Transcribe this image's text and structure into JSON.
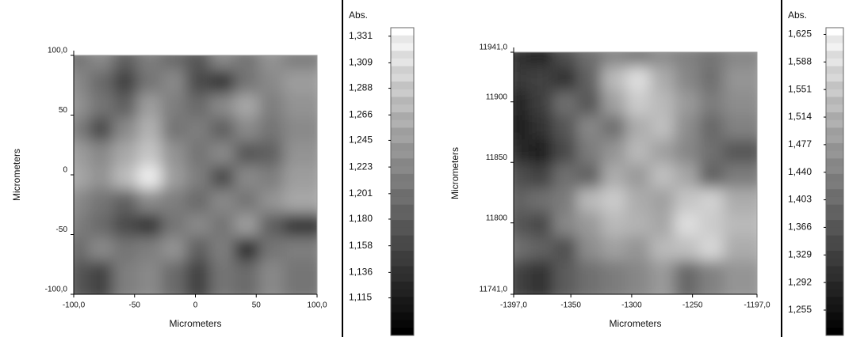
{
  "chart_data": [
    {
      "type": "heatmap",
      "xlabel": "Micrometers",
      "ylabel": "Micrometers",
      "xlim": [
        -100,
        100
      ],
      "ylim": [
        -100,
        100
      ],
      "xticks": [
        {
          "value": -100,
          "label": "-100,0"
        },
        -50,
        0,
        50,
        {
          "value": 100,
          "label": "100,0"
        }
      ],
      "yticks": [
        {
          "value": -100,
          "label": "-100,0"
        },
        -50,
        0,
        50,
        {
          "value": 100,
          "label": "100,0"
        }
      ],
      "x": [
        -90,
        -70,
        -50,
        -30,
        -10,
        10,
        30,
        50,
        70,
        90
      ],
      "y": [
        90,
        70,
        50,
        30,
        10,
        -10,
        -30,
        -50,
        -70,
        -90
      ],
      "z": [
        [
          1.2,
          1.22,
          1.18,
          1.21,
          1.19,
          1.17,
          1.22,
          1.2,
          1.23,
          1.21
        ],
        [
          1.22,
          1.19,
          1.15,
          1.2,
          1.22,
          1.16,
          1.14,
          1.2,
          1.22,
          1.24
        ],
        [
          1.23,
          1.2,
          1.18,
          1.24,
          1.21,
          1.19,
          1.22,
          1.25,
          1.21,
          1.23
        ],
        [
          1.21,
          1.16,
          1.22,
          1.26,
          1.2,
          1.21,
          1.18,
          1.22,
          1.2,
          1.22
        ],
        [
          1.24,
          1.22,
          1.25,
          1.28,
          1.23,
          1.2,
          1.22,
          1.17,
          1.18,
          1.23
        ],
        [
          1.25,
          1.23,
          1.27,
          1.32,
          1.24,
          1.21,
          1.16,
          1.22,
          1.21,
          1.24
        ],
        [
          1.22,
          1.2,
          1.18,
          1.22,
          1.21,
          1.19,
          1.22,
          1.2,
          1.23,
          1.25
        ],
        [
          1.21,
          1.19,
          1.16,
          1.14,
          1.2,
          1.22,
          1.2,
          1.24,
          1.18,
          1.14
        ],
        [
          1.19,
          1.22,
          1.2,
          1.21,
          1.23,
          1.18,
          1.21,
          1.13,
          1.2,
          1.21
        ],
        [
          1.17,
          1.15,
          1.21,
          1.22,
          1.19,
          1.15,
          1.2,
          1.19,
          1.22,
          1.2
        ]
      ],
      "colorbar": {
        "label": "Abs.",
        "clim": [
          1.084,
          1.338
        ],
        "ticks": [
          {
            "value": 1.331,
            "label": "1,331"
          },
          {
            "value": 1.309,
            "label": "1,309"
          },
          {
            "value": 1.288,
            "label": "1,288"
          },
          {
            "value": 1.266,
            "label": "1,266"
          },
          {
            "value": 1.245,
            "label": "1,245"
          },
          {
            "value": 1.223,
            "label": "1,223"
          },
          {
            "value": 1.201,
            "label": "1,201"
          },
          {
            "value": 1.18,
            "label": "1,180"
          },
          {
            "value": 1.158,
            "label": "1,158"
          },
          {
            "value": 1.136,
            "label": "1,136"
          },
          {
            "value": 1.115,
            "label": "1,115"
          }
        ]
      }
    },
    {
      "type": "heatmap",
      "xlabel": "Micrometers",
      "ylabel": "Micrometers",
      "xlim": [
        -1397,
        -1197
      ],
      "ylim": [
        11741,
        11941
      ],
      "xticks": [
        {
          "value": -1397,
          "label": "-1397,0"
        },
        -1350,
        -1300,
        -1250,
        {
          "value": -1197,
          "label": "-1197,0"
        }
      ],
      "yticks": [
        {
          "value": 11741,
          "label": "11741,0"
        },
        11800,
        11850,
        11900,
        {
          "value": 11941,
          "label": "11941,0"
        }
      ],
      "x": [
        -1387,
        -1367,
        -1347,
        -1327,
        -1307,
        -1287,
        -1267,
        -1247,
        -1227,
        -1207
      ],
      "y": [
        11931,
        11911,
        11891,
        11871,
        11851,
        11831,
        11811,
        11791,
        11771,
        11751
      ],
      "z": [
        [
          1.3,
          1.28,
          1.35,
          1.4,
          1.44,
          1.42,
          1.45,
          1.43,
          1.41,
          1.44
        ],
        [
          1.31,
          1.33,
          1.3,
          1.38,
          1.52,
          1.58,
          1.5,
          1.44,
          1.4,
          1.46
        ],
        [
          1.28,
          1.32,
          1.4,
          1.36,
          1.48,
          1.55,
          1.52,
          1.47,
          1.42,
          1.45
        ],
        [
          1.27,
          1.3,
          1.36,
          1.44,
          1.4,
          1.5,
          1.53,
          1.45,
          1.39,
          1.43
        ],
        [
          1.29,
          1.27,
          1.34,
          1.42,
          1.46,
          1.52,
          1.48,
          1.44,
          1.4,
          1.36
        ],
        [
          1.35,
          1.33,
          1.4,
          1.38,
          1.5,
          1.47,
          1.53,
          1.49,
          1.38,
          1.42
        ],
        [
          1.38,
          1.4,
          1.42,
          1.52,
          1.55,
          1.5,
          1.48,
          1.54,
          1.56,
          1.5
        ],
        [
          1.36,
          1.34,
          1.44,
          1.47,
          1.52,
          1.51,
          1.49,
          1.58,
          1.55,
          1.52
        ],
        [
          1.4,
          1.38,
          1.35,
          1.45,
          1.48,
          1.46,
          1.52,
          1.53,
          1.57,
          1.5
        ],
        [
          1.33,
          1.3,
          1.37,
          1.4,
          1.42,
          1.44,
          1.47,
          1.39,
          1.43,
          1.46
        ]
      ],
      "colorbar": {
        "label": "Abs.",
        "clim": [
          1.221,
          1.634
        ],
        "ticks": [
          {
            "value": 1.625,
            "label": "1,625"
          },
          {
            "value": 1.588,
            "label": "1,588"
          },
          {
            "value": 1.551,
            "label": "1,551"
          },
          {
            "value": 1.514,
            "label": "1,514"
          },
          {
            "value": 1.477,
            "label": "1,477"
          },
          {
            "value": 1.44,
            "label": "1,440"
          },
          {
            "value": 1.403,
            "label": "1,403"
          },
          {
            "value": 1.366,
            "label": "1,366"
          },
          {
            "value": 1.329,
            "label": "1,329"
          },
          {
            "value": 1.292,
            "label": "1,292"
          },
          {
            "value": 1.255,
            "label": "1,255"
          }
        ]
      }
    }
  ]
}
